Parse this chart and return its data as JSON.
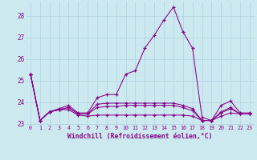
{
  "xlabel": "Windchill (Refroidissement éolien,°C)",
  "background_color": "#cde9f0",
  "line_color": "#880088",
  "grid_color": "#b8d8e8",
  "xlim": [
    -0.5,
    23.5
  ],
  "ylim": [
    22.95,
    28.65
  ],
  "yticks": [
    23,
    24,
    25,
    26,
    27,
    28
  ],
  "xticks": [
    0,
    1,
    2,
    3,
    4,
    5,
    6,
    7,
    8,
    9,
    10,
    11,
    12,
    13,
    14,
    15,
    16,
    17,
    18,
    19,
    20,
    21,
    22,
    23
  ],
  "series": [
    [
      25.3,
      23.15,
      23.55,
      23.7,
      23.85,
      23.5,
      23.5,
      24.2,
      24.35,
      24.35,
      25.3,
      25.45,
      26.5,
      27.1,
      27.8,
      28.4,
      27.25,
      26.5,
      23.3,
      23.15,
      23.85,
      24.05,
      23.5,
      23.5
    ],
    [
      25.3,
      23.15,
      23.55,
      23.65,
      23.65,
      23.4,
      23.35,
      23.4,
      23.4,
      23.4,
      23.4,
      23.4,
      23.4,
      23.4,
      23.4,
      23.4,
      23.4,
      23.35,
      23.15,
      23.15,
      23.35,
      23.5,
      23.45,
      23.45
    ],
    [
      25.3,
      23.15,
      23.55,
      23.65,
      23.75,
      23.45,
      23.45,
      23.75,
      23.8,
      23.8,
      23.85,
      23.85,
      23.85,
      23.85,
      23.85,
      23.85,
      23.75,
      23.6,
      23.15,
      23.15,
      23.5,
      23.7,
      23.45,
      23.45
    ],
    [
      25.3,
      23.15,
      23.55,
      23.65,
      23.75,
      23.45,
      23.45,
      23.9,
      23.95,
      23.95,
      23.95,
      23.95,
      23.95,
      23.95,
      23.95,
      23.95,
      23.85,
      23.7,
      23.15,
      23.15,
      23.55,
      23.75,
      23.45,
      23.45
    ]
  ]
}
